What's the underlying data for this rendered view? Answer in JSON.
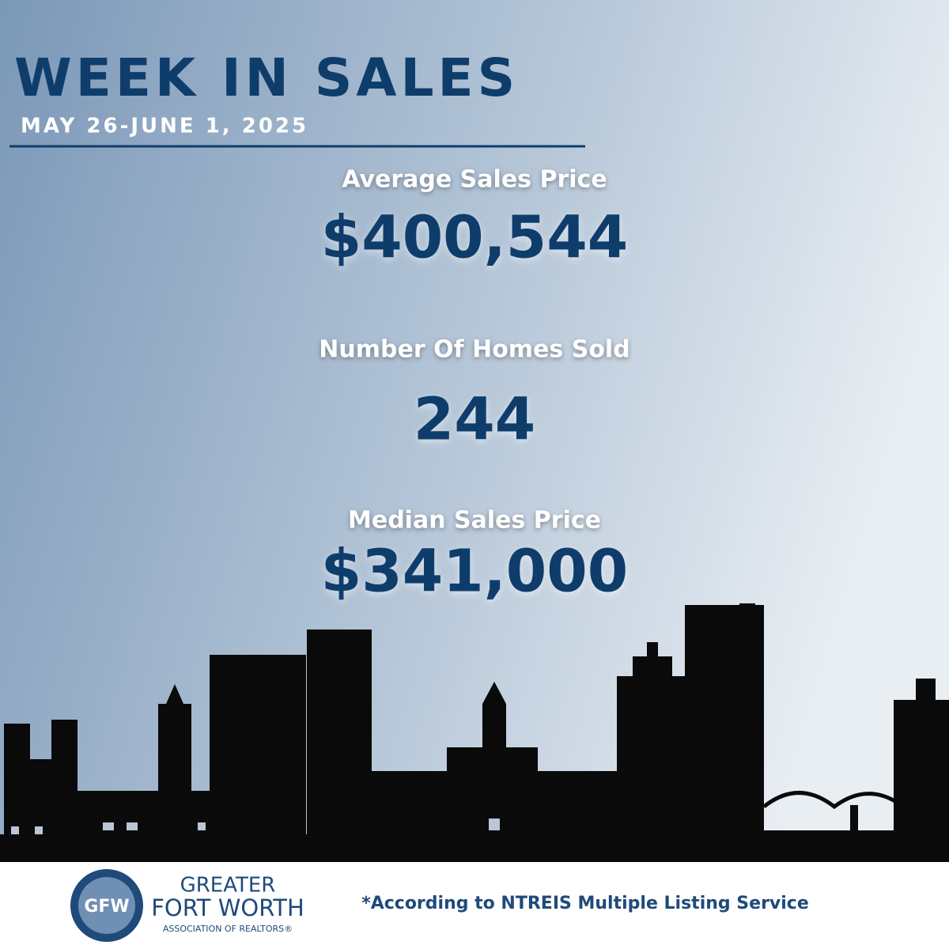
{
  "header": {
    "title": "WEEK IN SALES",
    "date": "MAY 26-JUNE 1, 2025"
  },
  "stats": [
    {
      "label": "Average Sales Price",
      "value": "$400,544"
    },
    {
      "label": "Number Of Homes Sold",
      "value": "244"
    },
    {
      "label": "Median Sales Price",
      "value": "$341,000"
    }
  ],
  "footer": {
    "logo": "GFW",
    "org": [
      "GREATER",
      "FORT WORTH",
      "ASSOCIATION OF REALTORS®"
    ],
    "note": "*According to NTREIS Multiple Listing Service"
  }
}
